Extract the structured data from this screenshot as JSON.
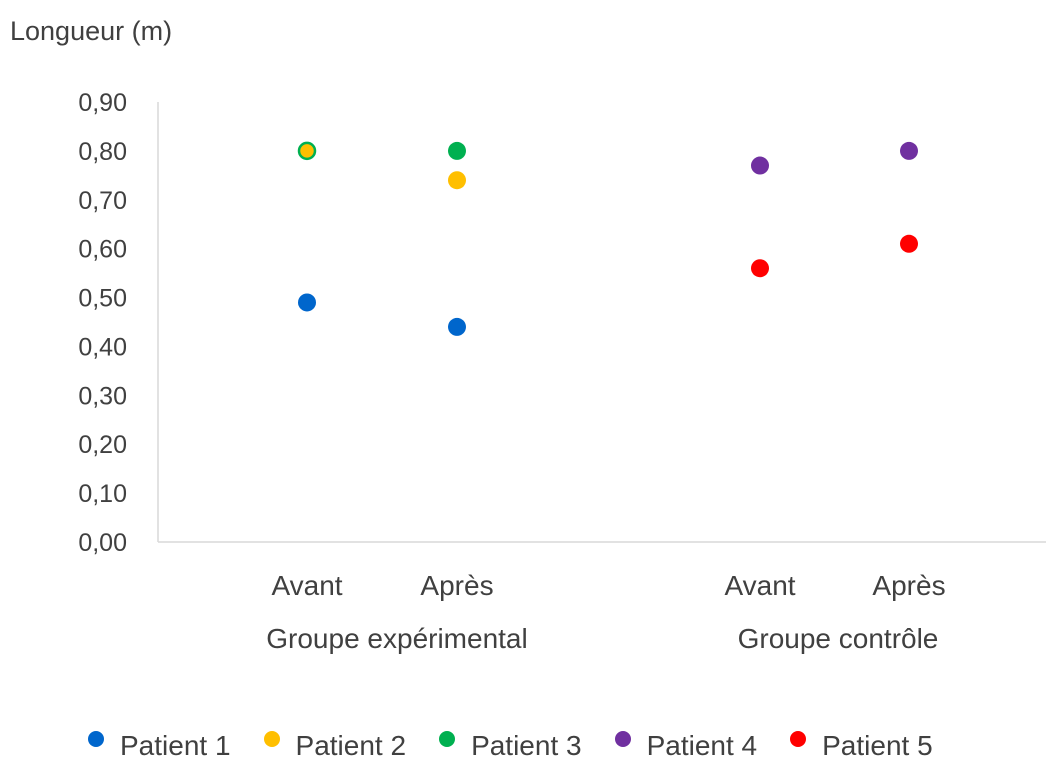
{
  "chart_data": {
    "type": "scatter",
    "ylabel": "Longueur (m)",
    "ylim": [
      0,
      0.9
    ],
    "yticks": [
      "0,00",
      "0,10",
      "0,20",
      "0,30",
      "0,40",
      "0,50",
      "0,60",
      "0,70",
      "0,80",
      "0,90"
    ],
    "categories": [
      {
        "label": "Avant",
        "group": "Groupe expérimental"
      },
      {
        "label": "Après",
        "group": "Groupe expérimental"
      },
      {
        "label": "Avant",
        "group": "Groupe contrôle"
      },
      {
        "label": "Après",
        "group": "Groupe contrôle"
      }
    ],
    "groups": [
      "Groupe expérimental",
      "Groupe contrôle"
    ],
    "series": [
      {
        "name": "Patient 1",
        "color": "#0066cc",
        "values": [
          0.49,
          0.44,
          null,
          null
        ]
      },
      {
        "name": "Patient 2",
        "color": "#ffbf00",
        "values": [
          0.8,
          0.74,
          null,
          null
        ]
      },
      {
        "name": "Patient 3",
        "color": "#00b050",
        "values": [
          0.8,
          0.8,
          null,
          null
        ]
      },
      {
        "name": "Patient 4",
        "color": "#7030a0",
        "values": [
          null,
          null,
          0.77,
          0.8
        ]
      },
      {
        "name": "Patient 5",
        "color": "#ff0000",
        "values": [
          null,
          null,
          0.56,
          0.61
        ]
      }
    ],
    "grid": false,
    "legend": "bottom"
  }
}
